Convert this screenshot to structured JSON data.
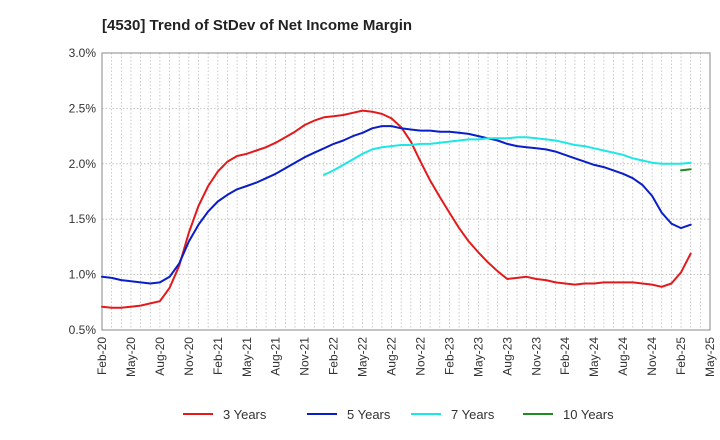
{
  "chart_data": {
    "type": "line",
    "title": "[4530]  Trend of StDev of Net Income Margin",
    "xlabel": "",
    "ylabel": "",
    "grid": true,
    "legend_position": "bottom",
    "x_range": [
      "2020-02",
      "2025-05"
    ],
    "ylim": [
      0.5,
      3.0
    ],
    "y_ticks": [
      "0.5%",
      "1.0%",
      "1.5%",
      "2.0%",
      "2.5%",
      "3.0%"
    ],
    "x_ticks": [
      "Feb-20",
      "May-20",
      "Aug-20",
      "Nov-20",
      "Feb-21",
      "May-21",
      "Aug-21",
      "Nov-21",
      "Feb-22",
      "May-22",
      "Aug-22",
      "Nov-22",
      "Feb-23",
      "May-23",
      "Aug-23",
      "Nov-23",
      "Feb-24",
      "May-24",
      "Aug-24",
      "Nov-24",
      "Feb-25",
      "May-25"
    ],
    "series": [
      {
        "name": "3 Years",
        "color": "#e31a1c",
        "points": [
          [
            "2020-02",
            0.71
          ],
          [
            "2020-03",
            0.7
          ],
          [
            "2020-04",
            0.7
          ],
          [
            "2020-05",
            0.71
          ],
          [
            "2020-06",
            0.72
          ],
          [
            "2020-07",
            0.74
          ],
          [
            "2020-08",
            0.76
          ],
          [
            "2020-09",
            0.88
          ],
          [
            "2020-10",
            1.08
          ],
          [
            "2020-11",
            1.38
          ],
          [
            "2020-12",
            1.62
          ],
          [
            "2021-01",
            1.8
          ],
          [
            "2021-02",
            1.93
          ],
          [
            "2021-03",
            2.02
          ],
          [
            "2021-04",
            2.07
          ],
          [
            "2021-05",
            2.09
          ],
          [
            "2021-06",
            2.12
          ],
          [
            "2021-07",
            2.15
          ],
          [
            "2021-08",
            2.19
          ],
          [
            "2021-09",
            2.24
          ],
          [
            "2021-10",
            2.29
          ],
          [
            "2021-11",
            2.35
          ],
          [
            "2021-12",
            2.39
          ],
          [
            "2022-01",
            2.42
          ],
          [
            "2022-02",
            2.43
          ],
          [
            "2022-03",
            2.44
          ],
          [
            "2022-04",
            2.46
          ],
          [
            "2022-05",
            2.48
          ],
          [
            "2022-06",
            2.47
          ],
          [
            "2022-07",
            2.45
          ],
          [
            "2022-08",
            2.41
          ],
          [
            "2022-09",
            2.33
          ],
          [
            "2022-10",
            2.2
          ],
          [
            "2022-11",
            2.02
          ],
          [
            "2022-12",
            1.85
          ],
          [
            "2023-01",
            1.7
          ],
          [
            "2023-02",
            1.56
          ],
          [
            "2023-03",
            1.42
          ],
          [
            "2023-04",
            1.3
          ],
          [
            "2023-05",
            1.2
          ],
          [
            "2023-06",
            1.11
          ],
          [
            "2023-07",
            1.03
          ],
          [
            "2023-08",
            0.96
          ],
          [
            "2023-09",
            0.97
          ],
          [
            "2023-10",
            0.98
          ],
          [
            "2023-11",
            0.96
          ],
          [
            "2023-12",
            0.95
          ],
          [
            "2024-01",
            0.93
          ],
          [
            "2024-02",
            0.92
          ],
          [
            "2024-03",
            0.91
          ],
          [
            "2024-04",
            0.92
          ],
          [
            "2024-05",
            0.92
          ],
          [
            "2024-06",
            0.93
          ],
          [
            "2024-07",
            0.93
          ],
          [
            "2024-08",
            0.93
          ],
          [
            "2024-09",
            0.93
          ],
          [
            "2024-10",
            0.92
          ],
          [
            "2024-11",
            0.91
          ],
          [
            "2024-12",
            0.89
          ],
          [
            "2025-01",
            0.92
          ],
          [
            "2025-02",
            1.02
          ],
          [
            "2025-03",
            1.19
          ]
        ]
      },
      {
        "name": "5 Years",
        "color": "#0a1ec8",
        "points": [
          [
            "2020-02",
            0.98
          ],
          [
            "2020-03",
            0.97
          ],
          [
            "2020-04",
            0.95
          ],
          [
            "2020-05",
            0.94
          ],
          [
            "2020-06",
            0.93
          ],
          [
            "2020-07",
            0.92
          ],
          [
            "2020-08",
            0.93
          ],
          [
            "2020-09",
            0.98
          ],
          [
            "2020-10",
            1.1
          ],
          [
            "2020-11",
            1.3
          ],
          [
            "2020-12",
            1.45
          ],
          [
            "2021-01",
            1.57
          ],
          [
            "2021-02",
            1.66
          ],
          [
            "2021-03",
            1.72
          ],
          [
            "2021-04",
            1.77
          ],
          [
            "2021-05",
            1.8
          ],
          [
            "2021-06",
            1.83
          ],
          [
            "2021-07",
            1.87
          ],
          [
            "2021-08",
            1.91
          ],
          [
            "2021-09",
            1.96
          ],
          [
            "2021-10",
            2.01
          ],
          [
            "2021-11",
            2.06
          ],
          [
            "2021-12",
            2.1
          ],
          [
            "2022-01",
            2.14
          ],
          [
            "2022-02",
            2.18
          ],
          [
            "2022-03",
            2.21
          ],
          [
            "2022-04",
            2.25
          ],
          [
            "2022-05",
            2.28
          ],
          [
            "2022-06",
            2.32
          ],
          [
            "2022-07",
            2.34
          ],
          [
            "2022-08",
            2.34
          ],
          [
            "2022-09",
            2.32
          ],
          [
            "2022-10",
            2.31
          ],
          [
            "2022-11",
            2.3
          ],
          [
            "2022-12",
            2.3
          ],
          [
            "2023-01",
            2.29
          ],
          [
            "2023-02",
            2.29
          ],
          [
            "2023-03",
            2.28
          ],
          [
            "2023-04",
            2.27
          ],
          [
            "2023-05",
            2.25
          ],
          [
            "2023-06",
            2.23
          ],
          [
            "2023-07",
            2.21
          ],
          [
            "2023-08",
            2.18
          ],
          [
            "2023-09",
            2.16
          ],
          [
            "2023-10",
            2.15
          ],
          [
            "2023-11",
            2.14
          ],
          [
            "2023-12",
            2.13
          ],
          [
            "2024-01",
            2.11
          ],
          [
            "2024-02",
            2.08
          ],
          [
            "2024-03",
            2.05
          ],
          [
            "2024-04",
            2.02
          ],
          [
            "2024-05",
            1.99
          ],
          [
            "2024-06",
            1.97
          ],
          [
            "2024-07",
            1.94
          ],
          [
            "2024-08",
            1.91
          ],
          [
            "2024-09",
            1.87
          ],
          [
            "2024-10",
            1.81
          ],
          [
            "2024-11",
            1.71
          ],
          [
            "2024-12",
            1.56
          ],
          [
            "2025-01",
            1.46
          ],
          [
            "2025-02",
            1.42
          ],
          [
            "2025-03",
            1.45
          ]
        ]
      },
      {
        "name": "7 Years",
        "color": "#1ee6e6",
        "points": [
          [
            "2022-01",
            1.9
          ],
          [
            "2022-02",
            1.94
          ],
          [
            "2022-03",
            1.99
          ],
          [
            "2022-04",
            2.04
          ],
          [
            "2022-05",
            2.09
          ],
          [
            "2022-06",
            2.13
          ],
          [
            "2022-07",
            2.15
          ],
          [
            "2022-08",
            2.16
          ],
          [
            "2022-09",
            2.17
          ],
          [
            "2022-10",
            2.17
          ],
          [
            "2022-11",
            2.18
          ],
          [
            "2022-12",
            2.18
          ],
          [
            "2023-01",
            2.19
          ],
          [
            "2023-02",
            2.2
          ],
          [
            "2023-03",
            2.21
          ],
          [
            "2023-04",
            2.22
          ],
          [
            "2023-05",
            2.22
          ],
          [
            "2023-06",
            2.23
          ],
          [
            "2023-07",
            2.23
          ],
          [
            "2023-08",
            2.23
          ],
          [
            "2023-09",
            2.24
          ],
          [
            "2023-10",
            2.24
          ],
          [
            "2023-11",
            2.23
          ],
          [
            "2023-12",
            2.22
          ],
          [
            "2024-01",
            2.21
          ],
          [
            "2024-02",
            2.19
          ],
          [
            "2024-03",
            2.17
          ],
          [
            "2024-04",
            2.16
          ],
          [
            "2024-05",
            2.14
          ],
          [
            "2024-06",
            2.12
          ],
          [
            "2024-07",
            2.1
          ],
          [
            "2024-08",
            2.08
          ],
          [
            "2024-09",
            2.05
          ],
          [
            "2024-10",
            2.03
          ],
          [
            "2024-11",
            2.01
          ],
          [
            "2024-12",
            2.0
          ],
          [
            "2025-01",
            2.0
          ],
          [
            "2025-02",
            2.0
          ],
          [
            "2025-03",
            2.01
          ]
        ]
      },
      {
        "name": "10 Years",
        "color": "#228b22",
        "points": [
          [
            "2025-02",
            1.94
          ],
          [
            "2025-03",
            1.95
          ]
        ]
      }
    ]
  }
}
